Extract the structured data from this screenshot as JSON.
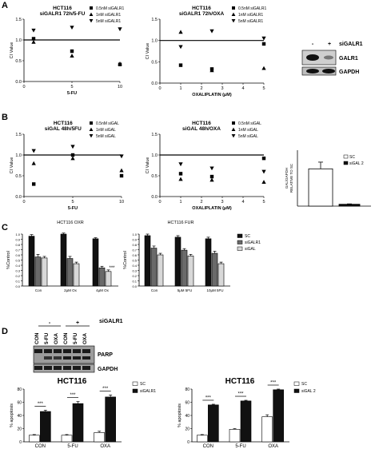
{
  "panels": {
    "A": "A",
    "B": "B",
    "C": "C",
    "D": "D"
  },
  "chart_data": [
    {
      "id": "a1",
      "type": "scatter",
      "title": "HCT116\nsiGALR1 72h/5-FU",
      "xlabel": "5-FU",
      "ylabel": "CI Value",
      "xlim": [
        0,
        10
      ],
      "ylim": [
        0,
        1.5
      ],
      "xticks": [
        "0",
        "5",
        "10"
      ],
      "yticks": [
        "0.0",
        "0.5",
        "1.0",
        "1.5"
      ],
      "reference_line": 1.0,
      "legend_position": "top-right",
      "series": [
        {
          "name": "0.5nM siGALR1",
          "marker": "square",
          "x": [
            1,
            5,
            10
          ],
          "y": [
            1.03,
            0.73,
            0.41
          ]
        },
        {
          "name": "1nM siGALR1",
          "marker": "triangle-up",
          "x": [
            1,
            5,
            10
          ],
          "y": [
            0.95,
            0.62,
            0.43
          ]
        },
        {
          "name": "5nM siGALR1",
          "marker": "triangle-down",
          "x": [
            1,
            5,
            10
          ],
          "y": [
            1.23,
            1.3,
            1.26
          ]
        }
      ]
    },
    {
      "id": "a2",
      "type": "scatter",
      "title": "HCT116\nsiGALR1 72h/OXA",
      "xlabel": "OXALIPLATIN (μM)",
      "ylabel": "CI Value",
      "xlim": [
        0,
        5
      ],
      "ylim": [
        0,
        1.5
      ],
      "xticks": [
        "0",
        "1",
        "2",
        "3",
        "4",
        "5"
      ],
      "yticks": [
        "0.0",
        "0.5",
        "1.0",
        "1.5"
      ],
      "reference_line": 1.0,
      "legend_position": "top-right",
      "series": [
        {
          "name": "0.5nM siGALR1",
          "marker": "square",
          "x": [
            1,
            2.5,
            5
          ],
          "y": [
            0.42,
            0.33,
            0.92
          ]
        },
        {
          "name": "1nM siGALR1",
          "marker": "triangle-up",
          "x": [
            1,
            2.5,
            5
          ],
          "y": [
            1.2,
            0.3,
            0.35
          ]
        },
        {
          "name": "5nM siGALR1",
          "marker": "triangle-down",
          "x": [
            1,
            2.5,
            5
          ],
          "y": [
            0.85,
            1.22,
            1.05
          ]
        }
      ]
    },
    {
      "id": "b1",
      "type": "scatter",
      "title": "HCT116\nsiGAL 48h/5FU",
      "xlabel": "5-FU",
      "ylabel": "CI Value",
      "xlim": [
        0,
        10
      ],
      "ylim": [
        0,
        1.5
      ],
      "xticks": [
        "0",
        "5",
        "10"
      ],
      "yticks": [
        "0.0",
        "0.5",
        "1.0",
        "1.5"
      ],
      "reference_line": 1.0,
      "legend_position": "top-right",
      "series": [
        {
          "name": "0.5nM siGAL",
          "marker": "square",
          "x": [
            1,
            5,
            10
          ],
          "y": [
            0.3,
            1.0,
            0.5
          ]
        },
        {
          "name": "1nM siGAL",
          "marker": "triangle-up",
          "x": [
            1,
            5,
            10
          ],
          "y": [
            0.8,
            0.92,
            0.63
          ]
        },
        {
          "name": "5nM siGAL",
          "marker": "triangle-down",
          "x": [
            1,
            5,
            10
          ],
          "y": [
            1.1,
            1.2,
            0.97
          ]
        }
      ]
    },
    {
      "id": "b2",
      "type": "scatter",
      "title": "HCT116\nsiGAL 48h/OXA",
      "xlabel": "OXALIPLATIN (μM)",
      "ylabel": "CI Value",
      "xlim": [
        0,
        5
      ],
      "ylim": [
        0,
        1.5
      ],
      "xticks": [
        "0",
        "1",
        "2",
        "3",
        "4",
        "5"
      ],
      "yticks": [
        "0.0",
        "0.5",
        "1.0",
        "1.5"
      ],
      "reference_line": 1.0,
      "legend_position": "top-right",
      "series": [
        {
          "name": "0.5nM siGAL",
          "marker": "square",
          "x": [
            1,
            2.5,
            5
          ],
          "y": [
            0.55,
            0.48,
            0.92
          ]
        },
        {
          "name": "1nM siGAL",
          "marker": "triangle-up",
          "x": [
            1,
            2.5,
            5
          ],
          "y": [
            0.42,
            0.4,
            0.35
          ]
        },
        {
          "name": "5nM siGAL",
          "marker": "triangle-down",
          "x": [
            1,
            2.5,
            5
          ],
          "y": [
            0.78,
            0.68,
            0.6
          ]
        }
      ]
    },
    {
      "id": "b3",
      "type": "bar",
      "ylabel": "GAL/GAPDH\nRELATIVE TO SC",
      "categories": [
        "SC",
        "siGAL 2"
      ],
      "legend_position": "top-right",
      "ylim": [
        0,
        1.5
      ],
      "series": [
        {
          "name": "SC",
          "values": [
            1.0,
            0.05
          ],
          "errors": [
            0.18,
            0.01
          ]
        }
      ]
    },
    {
      "id": "c1",
      "type": "bar",
      "title": "HCT116 OXR",
      "ylabel": "%Control",
      "ylim": [
        0,
        1.0
      ],
      "yticks": [
        "0.0",
        "0.1",
        "0.2",
        "0.3",
        "0.4",
        "0.5",
        "0.6",
        "0.7",
        "0.8",
        "0.9",
        "1.0"
      ],
      "categories": [
        "Con",
        "2μM Ox",
        "4μM Ox"
      ],
      "series": [
        {
          "name": "SC",
          "values": [
            0.96,
            1.0,
            0.91
          ],
          "errors": [
            0.03,
            0.02,
            0.02
          ]
        },
        {
          "name": "siGALR1",
          "values": [
            0.56,
            0.53,
            0.35
          ],
          "errors": [
            0.05,
            0.04,
            0.03
          ]
        },
        {
          "name": "siGAL",
          "values": [
            0.54,
            0.43,
            0.28
          ],
          "errors": [
            0.03,
            0.03,
            0.03
          ]
        }
      ],
      "annotations": [
        {
          "category": "4μM Ox",
          "series": "siGAL",
          "text": "***"
        }
      ]
    },
    {
      "id": "c2",
      "type": "bar",
      "title": "HCT116 FUR",
      "ylabel": "%Control",
      "ylim": [
        0,
        1.0
      ],
      "yticks": [
        "0.0",
        "0.1",
        "0.2",
        "0.3",
        "0.4",
        "0.5",
        "0.6",
        "0.7",
        "0.8",
        "0.9",
        "1.0"
      ],
      "categories": [
        "Con",
        "5μM 5FU",
        "10μM 5FU"
      ],
      "legend_position": "top-right",
      "series": [
        {
          "name": "SC",
          "values": [
            0.97,
            0.94,
            0.91
          ],
          "errors": [
            0.03,
            0.03,
            0.03
          ]
        },
        {
          "name": "siGALR1",
          "values": [
            0.73,
            0.69,
            0.63
          ],
          "errors": [
            0.04,
            0.03,
            0.04
          ]
        },
        {
          "name": "siGAL",
          "values": [
            0.6,
            0.58,
            0.43
          ],
          "errors": [
            0.03,
            0.03,
            0.03
          ]
        }
      ]
    },
    {
      "id": "d1",
      "type": "bar",
      "title": "HCT116",
      "ylabel": "% apoptosis",
      "ylim": [
        0,
        80
      ],
      "yticks": [
        "0",
        "20",
        "40",
        "60",
        "80"
      ],
      "categories": [
        "CON",
        "5-FU",
        "OXA"
      ],
      "legend_position": "top-right",
      "series": [
        {
          "name": "SC",
          "values": [
            10,
            10,
            14
          ],
          "errors": [
            1,
            1,
            2
          ]
        },
        {
          "name": "siGALR1",
          "values": [
            46,
            58,
            68
          ],
          "errors": [
            2,
            3,
            3
          ]
        }
      ],
      "annotations": [
        {
          "category": "CON",
          "text": "***"
        },
        {
          "category": "5-FU",
          "text": "***"
        },
        {
          "category": "OXA",
          "text": "***"
        }
      ]
    },
    {
      "id": "d2",
      "type": "bar",
      "title": "HCT116",
      "ylabel": "% apoptosis",
      "ylim": [
        0,
        80
      ],
      "yticks": [
        "0",
        "20",
        "40",
        "60",
        "80"
      ],
      "categories": [
        "CON",
        "5-FU",
        "OXA"
      ],
      "legend_position": "top-right",
      "series": [
        {
          "name": "SC",
          "values": [
            10,
            19,
            38
          ],
          "errors": [
            1,
            1,
            3
          ]
        },
        {
          "name": "siGAL 2",
          "values": [
            56,
            62,
            79
          ],
          "errors": [
            1,
            1,
            1
          ]
        }
      ],
      "annotations": [
        {
          "category": "CON",
          "text": "***"
        },
        {
          "category": "5-FU",
          "text": "***"
        },
        {
          "category": "OXA",
          "text": "***"
        }
      ]
    }
  ],
  "blot_a": {
    "minus": "-",
    "plus": "+",
    "treatment": "siGALR1",
    "bands": [
      "GALR1",
      "GAPDH"
    ]
  },
  "blot_d": {
    "minus": "-",
    "plus": "+",
    "treatment": "siGALR1",
    "lanes": [
      "CON",
      "5-FU",
      "OXA",
      "CON",
      "5-FU",
      "OXA"
    ],
    "bands": [
      "PARP",
      "GAPDH"
    ]
  }
}
